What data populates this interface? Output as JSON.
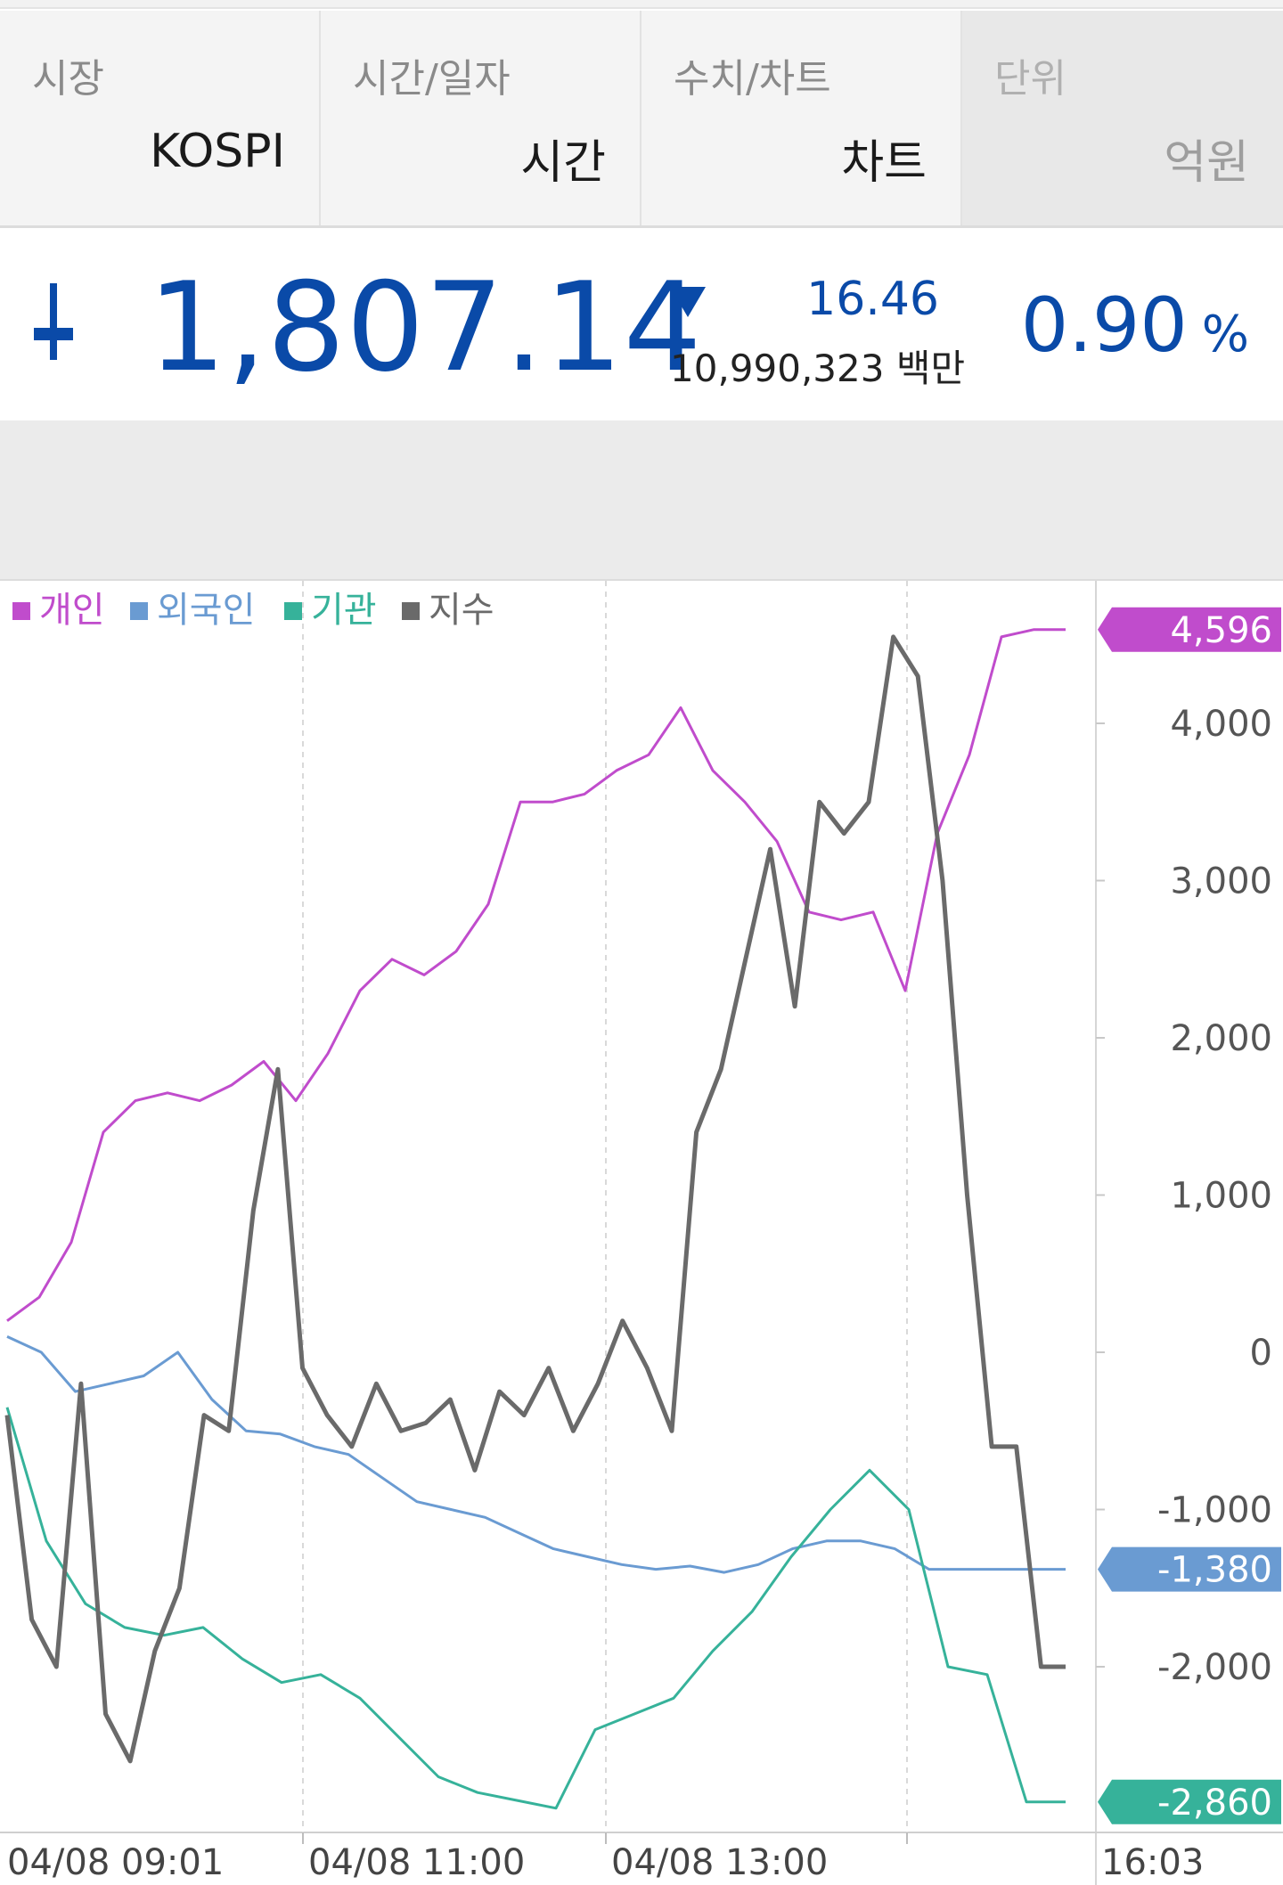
{
  "filters": [
    {
      "label": "시장",
      "value": "KOSPI"
    },
    {
      "label": "시간/일자",
      "value": "시간"
    },
    {
      "label": "수치/차트",
      "value": "차트"
    },
    {
      "label": "단위",
      "value": "억원"
    }
  ],
  "quote": {
    "price": "1,807.14",
    "change": "16.46",
    "volume": "10,990,323 백만",
    "percent": "0.90",
    "percent_symbol": "%",
    "direction": "down",
    "color": "#0a4aa8"
  },
  "chart_data": {
    "type": "line",
    "legend_position": "top-left",
    "legend": [
      {
        "name": "개인",
        "color": "#c04ccc"
      },
      {
        "name": "외국인",
        "color": "#6a9bd2"
      },
      {
        "name": "기관",
        "color": "#36b29a"
      },
      {
        "name": "지수",
        "color": "#6a6a6a"
      }
    ],
    "x_tick_labels": [
      "04/08 09:01",
      "04/08 11:00",
      "04/08 13:00",
      "16:03"
    ],
    "y_ticks": [
      4000,
      3000,
      2000,
      1000,
      0,
      -1000,
      -2000
    ],
    "y_tick_labels": [
      "4,000",
      "3,000",
      "2,000",
      "1,000",
      "0",
      "-1,000",
      "-2,000"
    ],
    "ylim": [
      -3100,
      4750
    ],
    "grid": "vertical dashed",
    "last_value_labels": [
      {
        "series": "개인",
        "text": "4,596",
        "value": 4596,
        "color": "#c04ccc"
      },
      {
        "series": "외국인",
        "text": "-1,380",
        "value": -1380,
        "color": "#6a9bd2"
      },
      {
        "series": "기관",
        "text": "-2,860",
        "value": -2860,
        "color": "#36b29a"
      }
    ],
    "series": [
      {
        "name": "개인",
        "color": "#c04ccc",
        "values": [
          200,
          350,
          700,
          1400,
          1600,
          1650,
          1600,
          1700,
          1850,
          1600,
          1900,
          2300,
          2500,
          2400,
          2550,
          2850,
          3500,
          3500,
          3550,
          3700,
          3800,
          4100,
          3700,
          3500,
          3250,
          2800,
          2750,
          2800,
          2300,
          3300,
          3800,
          4550,
          4596,
          4596
        ]
      },
      {
        "name": "외국인",
        "color": "#6a9bd2",
        "values": [
          100,
          0,
          -250,
          -200,
          -150,
          0,
          -300,
          -500,
          -520,
          -600,
          -650,
          -800,
          -950,
          -1000,
          -1050,
          -1150,
          -1250,
          -1300,
          -1350,
          -1380,
          -1360,
          -1400,
          -1350,
          -1250,
          -1200,
          -1200,
          -1250,
          -1380,
          -1380,
          -1380,
          -1380,
          -1380
        ]
      },
      {
        "name": "기관",
        "color": "#36b29a",
        "values": [
          -350,
          -1200,
          -1600,
          -1750,
          -1800,
          -1750,
          -1950,
          -2100,
          -2050,
          -2200,
          -2450,
          -2700,
          -2800,
          -2850,
          -2900,
          -2400,
          -2300,
          -2200,
          -1900,
          -1650,
          -1300,
          -1000,
          -750,
          -1000,
          -2000,
          -2050,
          -2860,
          -2860
        ]
      },
      {
        "name": "지수",
        "color": "#6a6a6a",
        "values": [
          -400,
          -1700,
          -2000,
          -200,
          -2300,
          -2600,
          -1900,
          -1500,
          -400,
          -500,
          900,
          1800,
          -100,
          -400,
          -600,
          -200,
          -500,
          -450,
          -300,
          -750,
          -250,
          -400,
          -100,
          -500,
          -200,
          200,
          -100,
          -500,
          1400,
          1800,
          2500,
          3200,
          2200,
          3500,
          3300,
          3500,
          4550,
          4300,
          3000,
          1000,
          -600,
          -600,
          -2000,
          -2000
        ]
      }
    ]
  }
}
